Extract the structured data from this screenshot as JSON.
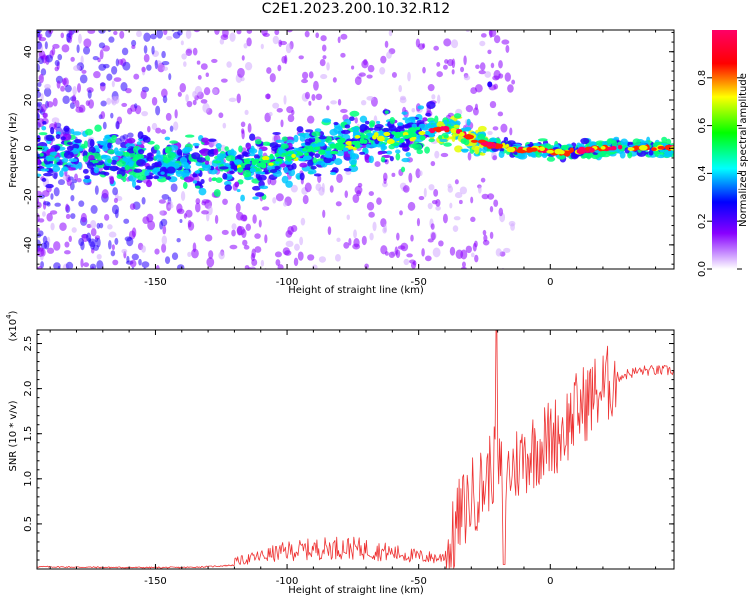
{
  "title": "C2E1.2023.200.10.32.R12",
  "colors": {
    "snr_line": "#ee3333",
    "colorbar": [
      "#ffffff",
      "#8800ff",
      "#0000ff",
      "#00ffff",
      "#00ff00",
      "#ffff00",
      "#ff0000",
      "#ff0066"
    ]
  },
  "chart_data": [
    {
      "type": "heatmap",
      "name": "spectrogram",
      "xlabel": "Height of straight line (km)",
      "ylabel": "Frequency (Hz)",
      "xlim": [
        -195,
        47
      ],
      "ylim": [
        -50,
        49
      ],
      "xticks": [
        -150,
        -100,
        -50,
        0
      ],
      "xtick_labels": [
        "-150",
        "-100",
        "-50",
        "0"
      ],
      "yticks": [
        -40,
        -20,
        0,
        20,
        40
      ],
      "ytick_labels": [
        "-40",
        "-20",
        "0",
        "20",
        "40"
      ],
      "colorbar": {
        "label": "Normalized spectral amplitude",
        "range": [
          0,
          1
        ],
        "ticks": [
          0.0,
          0.2,
          0.4,
          0.6,
          0.8
        ],
        "tick_labels": [
          "0.0",
          "0.2",
          "0.4",
          "0.6",
          "0.8"
        ]
      },
      "ridge": {
        "x": [
          -195,
          -170,
          -150,
          -130,
          -110,
          -100,
          -90,
          -80,
          -70,
          -60,
          -50,
          -42,
          -35,
          -28,
          -22,
          -18,
          -12,
          -5,
          0,
          5,
          10,
          20,
          30,
          47
        ],
        "y": [
          -2,
          -4,
          -6,
          -6,
          -7,
          -4,
          -1,
          1,
          3,
          4,
          6,
          8,
          7,
          3,
          1,
          1,
          -1,
          0,
          -1,
          -2,
          -1,
          0,
          0,
          0
        ]
      }
    },
    {
      "type": "line",
      "name": "snr",
      "xlabel": "Height of straight line (km)",
      "ylabel": "SNR (10 * v/v)",
      "ylabel_scale": "(x10",
      "ylabel_scale_exp": "4",
      "ylabel_scale_close": ")",
      "xlim": [
        -195,
        47
      ],
      "ylim": [
        0,
        2.65
      ],
      "xticks": [
        -150,
        -100,
        -50,
        0
      ],
      "xtick_labels": [
        "-150",
        "-100",
        "-50",
        "0"
      ],
      "yticks": [
        0.5,
        1.0,
        1.5,
        2.0,
        2.5
      ],
      "ytick_labels": [
        "0.5",
        "1.0",
        "1.5",
        "2.0",
        "2.5"
      ],
      "envelope": {
        "x": [
          -195,
          -180,
          -160,
          -140,
          -130,
          -120,
          -110,
          -100,
          -90,
          -80,
          -70,
          -60,
          -50,
          -42,
          -38,
          -35,
          -30,
          -25,
          -22,
          -20,
          -18,
          -15,
          -10,
          -5,
          0,
          5,
          10,
          15,
          20,
          25,
          30,
          35,
          40,
          47
        ],
        "y": [
          0.04,
          0.03,
          0.02,
          0.02,
          0.04,
          0.08,
          0.14,
          0.2,
          0.22,
          0.24,
          0.22,
          0.18,
          0.14,
          0.12,
          0.2,
          0.55,
          0.8,
          0.95,
          1.15,
          1.1,
          1.0,
          1.1,
          1.25,
          1.35,
          1.45,
          1.55,
          1.75,
          1.9,
          2.0,
          2.12,
          2.17,
          2.2,
          2.2,
          2.2
        ]
      },
      "peak": {
        "x": -20.5,
        "y": 2.65
      },
      "dip": {
        "x": -17.5,
        "y": 0.05
      }
    }
  ]
}
